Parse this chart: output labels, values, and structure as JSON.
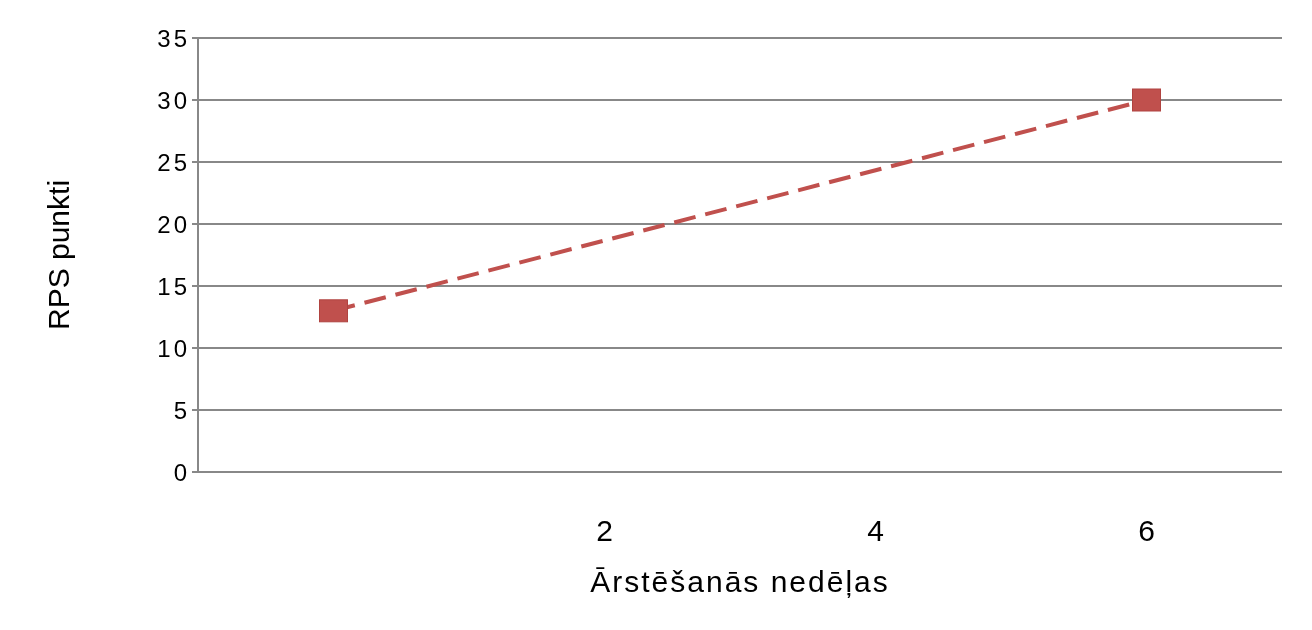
{
  "chart_data": {
    "type": "line",
    "xlabel": "Ārstēšanās nedēļas",
    "ylabel": "RPS punkti",
    "categories": [
      null,
      "2",
      "4",
      "6"
    ],
    "series": [
      {
        "color": "#c0504d",
        "values": [
          13,
          null,
          null,
          30
        ]
      }
    ],
    "ylim": [
      0,
      35
    ],
    "yticks": [
      0,
      5,
      10,
      15,
      20,
      25,
      30,
      35
    ],
    "grid": "y",
    "marker": "square",
    "line_style": "dashed"
  }
}
